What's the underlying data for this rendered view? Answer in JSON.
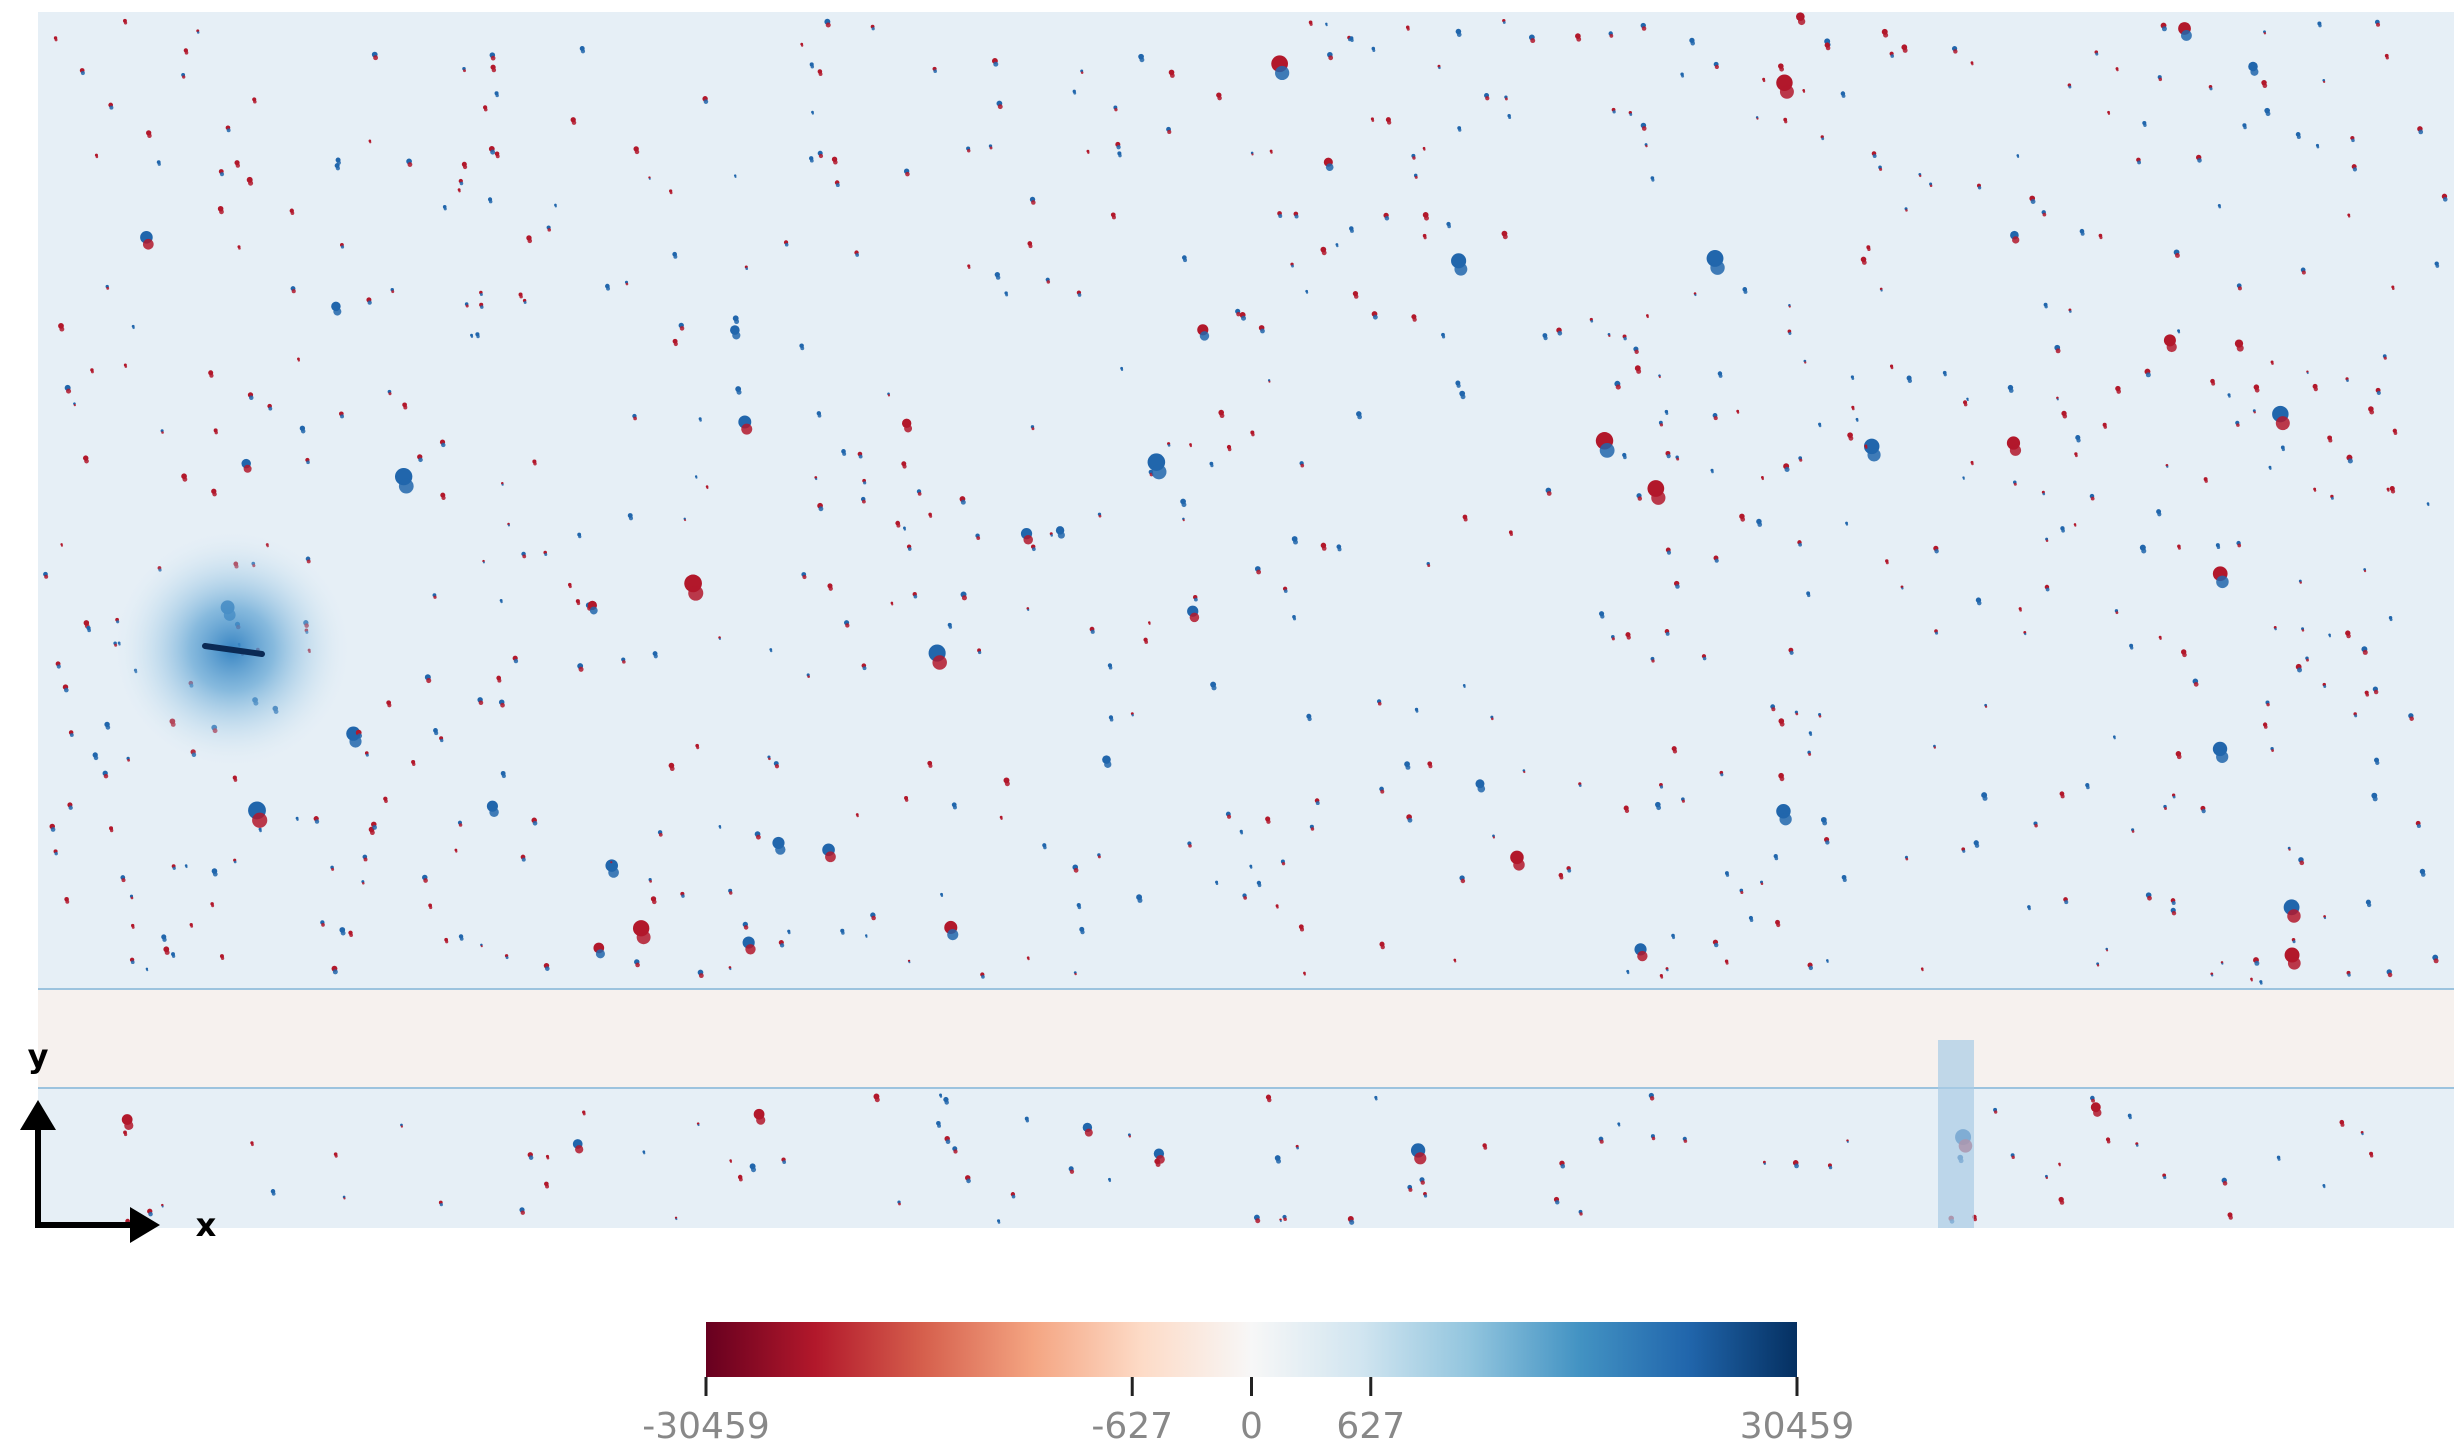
{
  "chart_data": {
    "type": "image",
    "colorbar": {
      "lim": [
        -30459,
        30459
      ],
      "ticks": [
        -30459,
        -627,
        0,
        627,
        30459
      ],
      "scale": "asinh"
    },
    "axis_labels": {
      "x": "x",
      "y": "y"
    }
  }
}
